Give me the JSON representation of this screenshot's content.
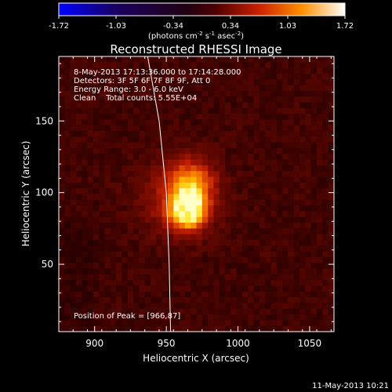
{
  "chart_data": {
    "type": "heatmap",
    "title": "Reconstructed RHESSI Image",
    "xlabel": "Heliocentric X (arcsec)",
    "ylabel": "Heliocentric Y (arcsec)",
    "xlim": [
      875,
      1067
    ],
    "ylim": [
      3,
      195
    ],
    "xticks": [
      900,
      950,
      1000,
      1050
    ],
    "yticks": [
      50,
      100,
      150
    ],
    "colorbar": {
      "range": [
        -1.72,
        1.72
      ],
      "ticks": [
        "-1.72",
        "-1.03",
        "-0.34",
        "0.34",
        "1.03",
        "1.72"
      ],
      "unit_parts": [
        "(photons cm",
        "-2",
        " s",
        "-1",
        " asec",
        "-2",
        ")"
      ]
    },
    "peak": [
      966,
      87
    ],
    "sources": [
      {
        "x": 965,
        "y": 87,
        "sigma": 9,
        "amp": 1.0
      },
      {
        "x": 968,
        "y": 107,
        "sigma": 11,
        "amp": 0.55
      },
      {
        "x": 958,
        "y": 96,
        "sigma": 18,
        "amp": 0.35
      }
    ],
    "limb_points": [
      [
        937,
        195
      ],
      [
        945,
        150
      ],
      [
        950,
        100
      ],
      [
        952,
        50
      ],
      [
        953,
        3
      ]
    ]
  },
  "annotations": {
    "line1": "8-May-2013 17:13:36.000 to 17:14:28.000",
    "line2": "Detectors: 3F 5F 6F 7F 8F 9F, Att 0",
    "line3": "Energy Range: 3.0 - 6.0 keV",
    "line4": "Clean    Total counts: 5.55E+04",
    "peak_label": "Position of Peak = [966,87]"
  },
  "footer": {
    "date": "11-May-2013 10:21"
  }
}
